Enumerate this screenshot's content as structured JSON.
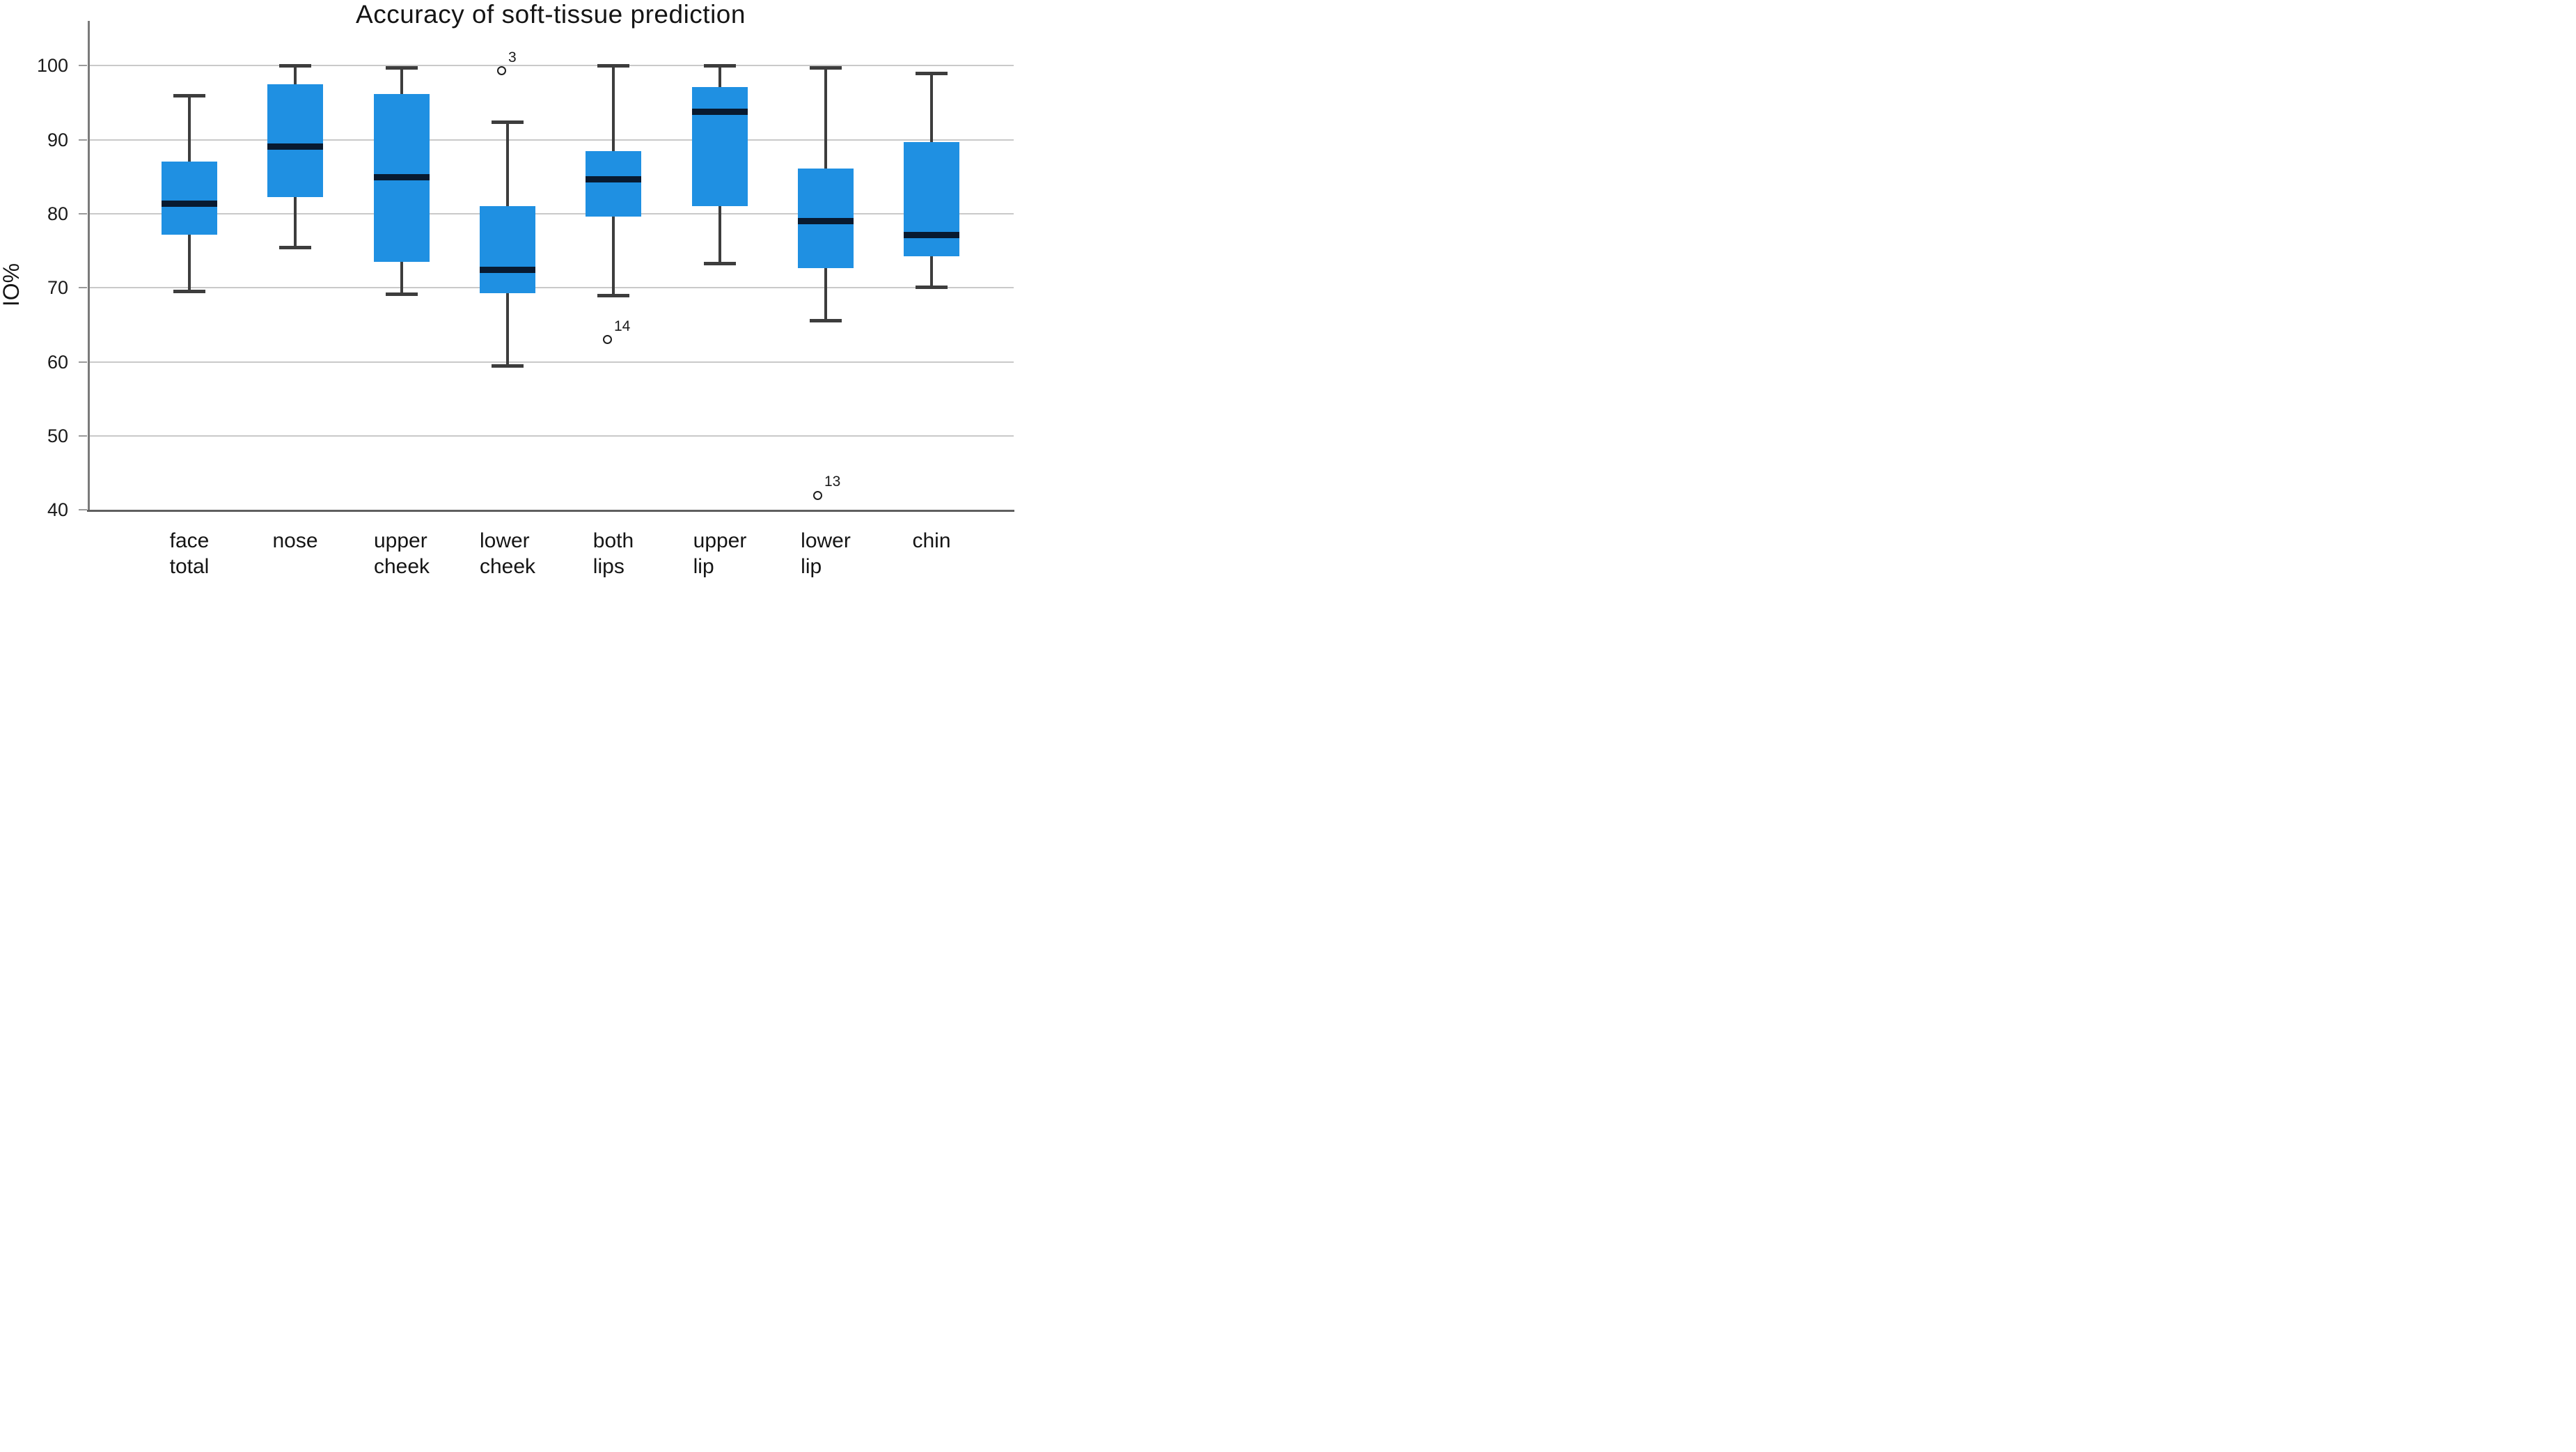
{
  "title": "Accuracy of soft-tissue prediction",
  "y_axis": {
    "label": "IO%",
    "tick_labels": [
      "100",
      "90",
      "80",
      "70",
      "60",
      "50",
      "40"
    ]
  },
  "colors": {
    "box_fill": "#1f90e2",
    "median": "#081a30",
    "whisker": "#3d3d3d",
    "gridline": "#c9c9c9",
    "axis": "#5f5f5f",
    "text": "#151515",
    "outlier_stroke": "#1f1f1f",
    "background": "#ffffff"
  },
  "chart_data": {
    "type": "boxplot",
    "title": "Accuracy of soft-tissue prediction",
    "xlabel": "",
    "ylabel": "IO%",
    "ylim": [
      40,
      106
    ],
    "yticks": [
      100,
      90,
      80,
      70,
      60,
      50,
      40
    ],
    "grid": true,
    "legend": false,
    "categories": [
      "face total",
      "nose",
      "upper cheek",
      "lower cheek",
      "both lips",
      "upper lip",
      "lower lip",
      "chin"
    ],
    "category_lines": [
      [
        "face",
        "total"
      ],
      [
        "nose"
      ],
      [
        "upper",
        "cheek"
      ],
      [
        "lower",
        "cheek"
      ],
      [
        "both",
        "lips"
      ],
      [
        "upper",
        "lip"
      ],
      [
        "lower",
        "lip"
      ],
      [
        "chin"
      ]
    ],
    "series": [
      {
        "name": "face total",
        "whisker_low": 69.6,
        "q1": 77.2,
        "median": 81.4,
        "q3": 87.1,
        "whisker_high": 96.0,
        "outliers": []
      },
      {
        "name": "nose",
        "whisker_low": 75.5,
        "q1": 82.3,
        "median": 89.1,
        "q3": 97.5,
        "whisker_high": 100.0,
        "outliers": []
      },
      {
        "name": "upper cheek",
        "whisker_low": 69.2,
        "q1": 73.5,
        "median": 84.9,
        "q3": 96.2,
        "whisker_high": 99.8,
        "outliers": []
      },
      {
        "name": "lower cheek",
        "whisker_low": 59.5,
        "q1": 69.3,
        "median": 72.4,
        "q3": 81.0,
        "whisker_high": 92.4,
        "outliers": [
          {
            "value": 99.3,
            "label": "3",
            "dx": -9
          }
        ]
      },
      {
        "name": "both lips",
        "whisker_low": 69.0,
        "q1": 79.6,
        "median": 84.7,
        "q3": 88.5,
        "whisker_high": 100.0,
        "outliers": [
          {
            "value": 63.0,
            "label": "14",
            "dx": -9
          }
        ]
      },
      {
        "name": "upper lip",
        "whisker_low": 73.3,
        "q1": 81.0,
        "median": 93.8,
        "q3": 97.1,
        "whisker_high": 100.0,
        "outliers": []
      },
      {
        "name": "lower lip",
        "whisker_low": 65.6,
        "q1": 72.7,
        "median": 79.0,
        "q3": 86.1,
        "whisker_high": 99.8,
        "outliers": [
          {
            "value": 42.0,
            "label": "13",
            "dx": -12
          }
        ]
      },
      {
        "name": "chin",
        "whisker_low": 70.1,
        "q1": 74.3,
        "median": 77.1,
        "q3": 89.7,
        "whisker_high": 99.0,
        "outliers": []
      }
    ]
  }
}
